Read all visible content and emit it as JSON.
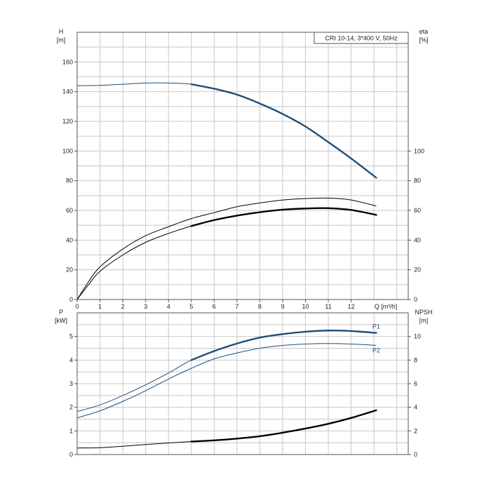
{
  "chart_data": [
    {
      "type": "line",
      "legend": "CRI 10-14, 3*400 V, 50Hz",
      "legend_placement": "top-right",
      "grid": true,
      "x_axis": {
        "label": "Q [m³/h]",
        "range": [
          0,
          14.5
        ],
        "ticks": [
          0,
          1,
          2,
          3,
          4,
          5,
          6,
          7,
          8,
          9,
          10,
          11,
          12
        ]
      },
      "y_left": {
        "label_top": "H",
        "label_unit": "[m]",
        "range": [
          0,
          180
        ],
        "ticks": [
          0,
          20,
          40,
          60,
          80,
          100,
          120,
          140,
          160
        ]
      },
      "y_right": {
        "label_top": "eta",
        "label_unit": "[%]",
        "range": [
          0,
          180
        ],
        "ticks": [
          0,
          20,
          40,
          60,
          80,
          100
        ]
      },
      "series": [
        {
          "key": "H",
          "axis": "left",
          "color": "#1f4e79",
          "x": [
            0,
            1,
            2,
            3,
            4,
            5,
            6,
            7,
            8,
            9,
            10,
            11,
            12,
            13.1
          ],
          "y": [
            144,
            144.2,
            145,
            145.8,
            145.8,
            145,
            142,
            138,
            132,
            125,
            116.5,
            106,
            95,
            82
          ]
        },
        {
          "key": "eta_outer",
          "axis": "right",
          "color": "#000000",
          "x": [
            0,
            0.5,
            1,
            2,
            3,
            4,
            5,
            6,
            7,
            8,
            9,
            10,
            11,
            12,
            13.1
          ],
          "y": [
            0,
            12,
            22,
            34,
            43,
            49,
            54.5,
            58.5,
            62.5,
            65,
            67,
            68,
            68.3,
            67,
            63
          ]
        },
        {
          "key": "eta_inner",
          "axis": "right",
          "color": "#000000",
          "x": [
            0,
            0.5,
            1,
            2,
            3,
            4,
            5,
            6,
            7,
            8,
            9,
            10,
            11,
            12,
            13.1
          ],
          "y": [
            0,
            10,
            19,
            30,
            38.5,
            44.5,
            49.5,
            53.5,
            56.5,
            58.8,
            60.5,
            61.3,
            61.5,
            60.3,
            57
          ]
        }
      ]
    },
    {
      "type": "line",
      "grid": true,
      "x_axis": {
        "label": "",
        "range": [
          0,
          14.5
        ]
      },
      "y_left": {
        "label_top": "P",
        "label_unit": "[kW]",
        "range": [
          0,
          6
        ],
        "ticks": [
          0,
          1,
          2,
          3,
          4,
          5
        ]
      },
      "y_right": {
        "label_top": "NPSH",
        "label_unit": "[m]",
        "range": [
          0,
          12
        ],
        "ticks": [
          0,
          2,
          4,
          6,
          8,
          10
        ]
      },
      "series": [
        {
          "name": "P1",
          "axis": "left",
          "color": "#1f4e79",
          "x": [
            0,
            1,
            2,
            3,
            4,
            5,
            6,
            7,
            8,
            9,
            10,
            11,
            12,
            13.1
          ],
          "y": [
            1.82,
            2.1,
            2.5,
            2.95,
            3.45,
            4.0,
            4.38,
            4.7,
            4.95,
            5.1,
            5.2,
            5.25,
            5.23,
            5.15
          ]
        },
        {
          "name": "P2",
          "axis": "left",
          "color": "#1f4e79",
          "x": [
            0,
            1,
            2,
            3,
            4,
            5,
            6,
            7,
            8,
            9,
            10,
            11,
            12,
            13.1
          ],
          "y": [
            1.55,
            1.85,
            2.25,
            2.7,
            3.2,
            3.65,
            4.05,
            4.3,
            4.5,
            4.62,
            4.68,
            4.7,
            4.68,
            4.62
          ]
        },
        {
          "key": "NPSH",
          "axis": "right",
          "color": "#000000",
          "x": [
            0,
            1,
            2,
            3,
            4,
            5,
            6,
            7,
            8,
            9,
            10,
            11,
            12,
            13.1
          ],
          "y": [
            0.55,
            0.58,
            0.7,
            0.85,
            0.98,
            1.1,
            1.2,
            1.35,
            1.55,
            1.85,
            2.2,
            2.6,
            3.1,
            3.75
          ]
        }
      ]
    }
  ]
}
